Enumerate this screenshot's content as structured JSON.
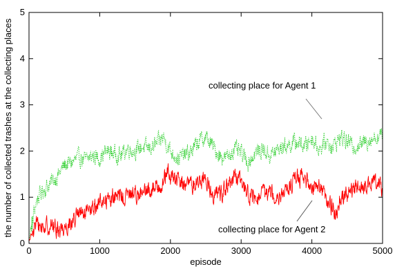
{
  "chart_data": {
    "type": "line",
    "title": "",
    "xlabel": "episode",
    "ylabel": "the number of collected trashes at the collecting places",
    "xlim": [
      0,
      5000
    ],
    "ylim": [
      0,
      5
    ],
    "x_ticks": [
      "0",
      "1000",
      "2000",
      "3000",
      "4000",
      "5000"
    ],
    "y_ticks": [
      "0",
      "1",
      "2",
      "3",
      "4",
      "5"
    ],
    "grid": false,
    "series": [
      {
        "name": "collecting place for Agent 1",
        "color": "#22cc22",
        "style": "dotted",
        "x": [
          0,
          50,
          100,
          150,
          200,
          300,
          400,
          500,
          600,
          700,
          800,
          900,
          1000,
          1100,
          1200,
          1300,
          1400,
          1500,
          1600,
          1700,
          1800,
          1900,
          2000,
          2100,
          2200,
          2300,
          2400,
          2500,
          2600,
          2700,
          2800,
          2900,
          3000,
          3100,
          3200,
          3300,
          3400,
          3500,
          3600,
          3700,
          3800,
          3900,
          4000,
          4100,
          4200,
          4300,
          4400,
          4500,
          4600,
          4700,
          4800,
          4900,
          5000
        ],
        "values": [
          0.1,
          0.5,
          0.9,
          1.05,
          1.15,
          1.3,
          1.45,
          1.7,
          1.75,
          1.85,
          1.8,
          1.9,
          1.85,
          2.0,
          1.95,
          1.9,
          2.05,
          2.0,
          2.1,
          2.05,
          2.15,
          2.3,
          2.0,
          1.85,
          1.9,
          2.0,
          2.2,
          2.3,
          2.1,
          1.9,
          1.85,
          2.05,
          1.95,
          1.75,
          1.95,
          2.05,
          1.9,
          2.0,
          2.1,
          2.15,
          2.2,
          2.1,
          2.3,
          2.05,
          2.2,
          2.1,
          2.3,
          2.2,
          2.1,
          2.15,
          2.25,
          2.3,
          2.35
        ],
        "noise": 0.28
      },
      {
        "name": "collecting place for Agent 2",
        "color": "#ff0000",
        "style": "solid",
        "x": [
          0,
          50,
          100,
          150,
          200,
          300,
          400,
          500,
          600,
          700,
          800,
          900,
          1000,
          1100,
          1200,
          1300,
          1400,
          1500,
          1600,
          1700,
          1800,
          1900,
          1950,
          2000,
          2100,
          2200,
          2300,
          2400,
          2500,
          2600,
          2700,
          2800,
          2900,
          3000,
          3100,
          3200,
          3300,
          3400,
          3500,
          3600,
          3700,
          3800,
          3900,
          4000,
          4100,
          4200,
          4300,
          4350,
          4400,
          4500,
          4600,
          4700,
          4800,
          4900,
          4950,
          5000
        ],
        "values": [
          0.05,
          0.25,
          0.4,
          0.38,
          0.35,
          0.4,
          0.3,
          0.35,
          0.45,
          0.65,
          0.6,
          0.75,
          0.9,
          0.95,
          1.0,
          1.0,
          1.05,
          1.1,
          1.05,
          1.15,
          1.25,
          1.3,
          1.55,
          1.45,
          1.35,
          1.3,
          1.25,
          1.35,
          1.4,
          1.05,
          1.1,
          1.2,
          1.4,
          1.35,
          1.1,
          0.9,
          1.05,
          1.15,
          1.05,
          1.1,
          1.25,
          1.45,
          1.35,
          1.25,
          1.3,
          0.95,
          0.75,
          0.65,
          1.0,
          1.05,
          1.15,
          1.25,
          1.2,
          1.35,
          1.45,
          1.05
        ],
        "noise": 0.3
      }
    ],
    "annotations": [
      {
        "text": "collecting place for Agent 1",
        "series": 0
      },
      {
        "text": "collecting place for Agent 2",
        "series": 1
      }
    ]
  }
}
